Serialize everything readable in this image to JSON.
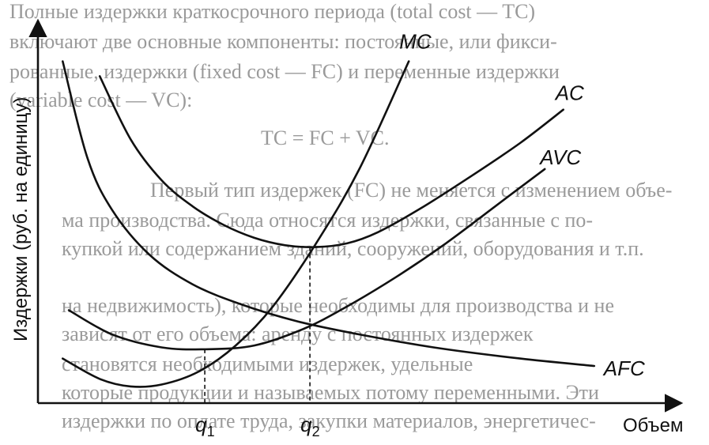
{
  "background_text": {
    "lines": [
      "Полные издержки краткосрочного периода (total cost — TC)",
      "включают две основные компоненты: постоянные, или фикси-",
      "рованные, издержки (fixed cost — FC) и переменные издержки",
      "(variable cost — VC):",
      "TC = FC + VC.",
      "Первый тип издержек (FC) не меняется с изменением объе-",
      "ма производства. Сюда относятся издержки, связанные с по-",
      "купкой или содержанием зданий, сооружений, оборудования и т.п.",
      "на недвижимость), которые необходимы для производства и не",
      "зависят от его объема: аренду с постоянных издержек",
      "становятся необходимыми издержек, удельные",
      "которые продукции и называемых потому переменными. Эти",
      "издержки по оплате труда, закупки материалов, энергетичес-"
    ]
  },
  "chart_data": {
    "type": "line",
    "title": "",
    "xlabel": "Объем",
    "ylabel": "Издержки (руб. на единицу)",
    "xlim": [
      0,
      10
    ],
    "ylim": [
      0,
      10
    ],
    "grid": false,
    "legend": "none",
    "series": [
      {
        "name": "MC",
        "x": [
          0.4,
          1.0,
          1.5,
          2.0,
          2.6,
          3.2,
          3.8,
          4.5,
          5.2,
          6.0
        ],
        "y": [
          1.2,
          0.65,
          0.45,
          0.5,
          0.85,
          1.55,
          2.6,
          4.3,
          6.3,
          9.2
        ]
      },
      {
        "name": "AC",
        "x": [
          1.0,
          1.5,
          2.0,
          2.5,
          3.0,
          3.5,
          4.0,
          4.5,
          5.0,
          5.5,
          6.2,
          7.0,
          7.8,
          8.5
        ],
        "y": [
          8.8,
          7.1,
          6.0,
          5.3,
          4.8,
          4.45,
          4.25,
          4.2,
          4.3,
          4.6,
          5.25,
          6.1,
          7.0,
          7.9
        ]
      },
      {
        "name": "AVC",
        "x": [
          0.5,
          1.2,
          2.0,
          2.7,
          3.5,
          4.3,
          5.0,
          5.8,
          6.6,
          7.4,
          8.2
        ],
        "y": [
          2.5,
          1.85,
          1.5,
          1.45,
          1.55,
          2.0,
          2.6,
          3.4,
          4.3,
          5.3,
          6.3
        ]
      },
      {
        "name": "AFC",
        "x": [
          0.4,
          0.8,
          1.2,
          1.8,
          2.5,
          3.3,
          4.2,
          5.2,
          6.4,
          7.8,
          9.0
        ],
        "y": [
          9.2,
          6.6,
          5.2,
          4.0,
          3.2,
          2.65,
          2.2,
          1.85,
          1.5,
          1.2,
          1.0
        ]
      }
    ],
    "x_ticks": [
      {
        "label": "q1",
        "x": 2.7,
        "y": 1.45
      },
      {
        "label": "q2",
        "x": 4.4,
        "y": 4.2
      }
    ],
    "colors": {
      "line": "#111111",
      "axis": "#111111",
      "background_text": "#9a9a9a"
    }
  }
}
